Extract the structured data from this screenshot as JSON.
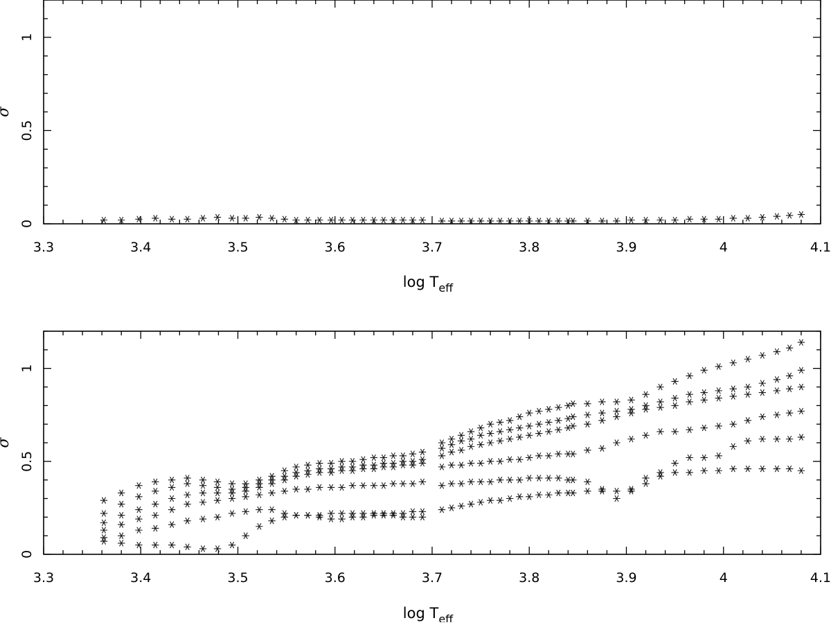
{
  "chart_data": [
    {
      "type": "scatter",
      "xlabel": "log T",
      "xlabel_subscript": "eff",
      "ylabel": "σ",
      "xlim": [
        3.3,
        4.1
      ],
      "ylim": [
        0,
        1.2
      ],
      "x_ticks": [
        3.3,
        3.4,
        3.5,
        3.6,
        3.7,
        3.8,
        3.9,
        4,
        4.1
      ],
      "x_tick_labels": [
        "3.3",
        "3.4",
        "3.5",
        "3.6",
        "3.7",
        "3.8",
        "3.9",
        "4",
        "4.1"
      ],
      "y_ticks": [
        0,
        0.5,
        1
      ],
      "y_tick_labels": [
        "0",
        "0.5",
        "1"
      ],
      "grid": false,
      "marker": "asterisk",
      "series": [
        {
          "x": [
            3.362,
            3.38,
            3.398,
            3.415,
            3.432,
            3.448,
            3.464,
            3.479,
            3.494,
            3.508,
            3.522,
            3.535,
            3.548,
            3.56,
            3.572,
            3.584,
            3.596,
            3.607,
            3.618,
            3.629,
            3.64,
            3.65,
            3.66,
            3.67,
            3.68,
            3.69,
            3.71,
            3.72,
            3.73,
            3.74,
            3.75,
            3.76,
            3.77,
            3.78,
            3.79,
            3.8,
            3.81,
            3.82,
            3.83,
            3.84,
            3.845,
            3.86,
            3.875,
            3.89,
            3.905,
            3.92,
            3.935,
            3.95,
            3.965,
            3.98,
            3.995,
            4.01,
            4.025,
            4.04,
            4.055,
            4.068,
            4.08
          ],
          "y": [
            0.02,
            0.02,
            0.025,
            0.03,
            0.025,
            0.025,
            0.03,
            0.035,
            0.03,
            0.03,
            0.035,
            0.03,
            0.025,
            0.02,
            0.02,
            0.02,
            0.02,
            0.02,
            0.02,
            0.02,
            0.02,
            0.02,
            0.02,
            0.02,
            0.02,
            0.02,
            0.015,
            0.015,
            0.015,
            0.015,
            0.015,
            0.015,
            0.015,
            0.015,
            0.015,
            0.015,
            0.015,
            0.015,
            0.015,
            0.015,
            0.015,
            0.015,
            0.015,
            0.015,
            0.02,
            0.02,
            0.02,
            0.02,
            0.025,
            0.025,
            0.025,
            0.03,
            0.03,
            0.035,
            0.04,
            0.045,
            0.05
          ]
        }
      ]
    },
    {
      "type": "scatter",
      "xlabel": "log T",
      "xlabel_subscript": "eff",
      "ylabel": "σ",
      "xlim": [
        3.3,
        4.1
      ],
      "ylim": [
        0,
        1.2
      ],
      "x_ticks": [
        3.3,
        3.4,
        3.5,
        3.6,
        3.7,
        3.8,
        3.9,
        4,
        4.1
      ],
      "x_tick_labels": [
        "3.3",
        "3.4",
        "3.5",
        "3.6",
        "3.7",
        "3.8",
        "3.9",
        "4",
        "4.1"
      ],
      "y_ticks": [
        0,
        0.5,
        1
      ],
      "y_tick_labels": [
        "0",
        "0.5",
        "1"
      ],
      "grid": false,
      "marker": "asterisk",
      "series": [
        {
          "x": [
            3.362,
            3.38,
            3.398,
            3.415,
            3.432,
            3.448,
            3.464,
            3.479,
            3.494,
            3.508,
            3.522,
            3.535,
            3.548,
            3.56,
            3.572,
            3.584,
            3.596,
            3.607,
            3.618,
            3.629,
            3.64,
            3.65,
            3.66,
            3.67,
            3.68,
            3.69,
            3.71,
            3.72,
            3.73,
            3.74,
            3.75,
            3.76,
            3.77,
            3.78,
            3.79,
            3.8,
            3.81,
            3.82,
            3.83,
            3.84,
            3.845,
            3.86,
            3.875,
            3.89,
            3.905,
            3.92,
            3.935,
            3.95,
            3.965,
            3.98,
            3.995,
            4.01,
            4.025,
            4.04,
            4.055,
            4.068,
            4.08
          ],
          "y": [
            0.29,
            0.33,
            0.37,
            0.39,
            0.4,
            0.41,
            0.4,
            0.39,
            0.38,
            0.38,
            0.4,
            0.42,
            0.45,
            0.47,
            0.48,
            0.49,
            0.49,
            0.5,
            0.5,
            0.51,
            0.52,
            0.52,
            0.53,
            0.53,
            0.54,
            0.55,
            0.6,
            0.62,
            0.64,
            0.66,
            0.68,
            0.7,
            0.71,
            0.72,
            0.74,
            0.76,
            0.77,
            0.78,
            0.79,
            0.8,
            0.81,
            0.81,
            0.82,
            0.82,
            0.83,
            0.86,
            0.9,
            0.93,
            0.96,
            0.99,
            1.01,
            1.03,
            1.05,
            1.07,
            1.09,
            1.11,
            1.14
          ]
        },
        {
          "x": [
            3.362,
            3.38,
            3.398,
            3.415,
            3.432,
            3.448,
            3.464,
            3.479,
            3.494,
            3.508,
            3.522,
            3.535,
            3.548,
            3.56,
            3.572,
            3.584,
            3.596,
            3.607,
            3.618,
            3.629,
            3.64,
            3.65,
            3.66,
            3.67,
            3.68,
            3.69,
            3.71,
            3.72,
            3.73,
            3.74,
            3.75,
            3.76,
            3.77,
            3.78,
            3.79,
            3.8,
            3.81,
            3.82,
            3.83,
            3.84,
            3.845,
            3.86,
            3.875,
            3.89,
            3.905,
            3.92,
            3.935,
            3.95,
            3.965,
            3.98,
            3.995,
            4.01,
            4.025,
            4.04,
            4.055,
            4.068,
            4.08
          ],
          "y": [
            0.22,
            0.27,
            0.31,
            0.34,
            0.36,
            0.38,
            0.37,
            0.36,
            0.35,
            0.36,
            0.38,
            0.4,
            0.42,
            0.44,
            0.45,
            0.46,
            0.46,
            0.47,
            0.47,
            0.48,
            0.48,
            0.49,
            0.49,
            0.5,
            0.5,
            0.51,
            0.57,
            0.59,
            0.61,
            0.62,
            0.64,
            0.65,
            0.66,
            0.67,
            0.68,
            0.69,
            0.7,
            0.71,
            0.72,
            0.73,
            0.74,
            0.75,
            0.76,
            0.77,
            0.78,
            0.8,
            0.82,
            0.84,
            0.86,
            0.87,
            0.88,
            0.89,
            0.9,
            0.92,
            0.94,
            0.96,
            0.99
          ]
        },
        {
          "x": [
            3.362,
            3.38,
            3.398,
            3.415,
            3.432,
            3.448,
            3.464,
            3.479,
            3.494,
            3.508,
            3.522,
            3.535,
            3.548,
            3.56,
            3.572,
            3.584,
            3.596,
            3.607,
            3.618,
            3.629,
            3.64,
            3.65,
            3.66,
            3.67,
            3.68,
            3.69,
            3.71,
            3.72,
            3.73,
            3.74,
            3.75,
            3.76,
            3.77,
            3.78,
            3.79,
            3.8,
            3.81,
            3.82,
            3.83,
            3.84,
            3.845,
            3.86,
            3.875,
            3.89,
            3.905,
            3.92,
            3.935,
            3.95,
            3.965,
            3.98,
            3.995,
            4.01,
            4.025,
            4.04,
            4.055,
            4.068,
            4.08
          ],
          "y": [
            0.17,
            0.21,
            0.24,
            0.27,
            0.3,
            0.32,
            0.33,
            0.33,
            0.33,
            0.34,
            0.36,
            0.38,
            0.4,
            0.42,
            0.43,
            0.44,
            0.44,
            0.45,
            0.45,
            0.46,
            0.46,
            0.47,
            0.47,
            0.48,
            0.48,
            0.49,
            0.53,
            0.55,
            0.56,
            0.58,
            0.59,
            0.6,
            0.61,
            0.62,
            0.63,
            0.64,
            0.65,
            0.66,
            0.67,
            0.68,
            0.69,
            0.7,
            0.72,
            0.74,
            0.76,
            0.78,
            0.79,
            0.8,
            0.82,
            0.83,
            0.84,
            0.85,
            0.86,
            0.87,
            0.88,
            0.89,
            0.9
          ]
        },
        {
          "x": [
            3.362,
            3.38,
            3.398,
            3.415,
            3.432,
            3.448,
            3.464,
            3.479,
            3.494,
            3.508,
            3.522,
            3.535,
            3.548,
            3.56,
            3.572,
            3.584,
            3.596,
            3.607,
            3.618,
            3.629,
            3.64,
            3.65,
            3.66,
            3.67,
            3.68,
            3.69,
            3.71,
            3.72,
            3.73,
            3.74,
            3.75,
            3.76,
            3.77,
            3.78,
            3.79,
            3.8,
            3.81,
            3.82,
            3.83,
            3.84,
            3.845,
            3.86,
            3.875,
            3.89,
            3.905,
            3.92,
            3.935,
            3.95,
            3.965,
            3.98,
            3.995,
            4.01,
            4.025,
            4.04,
            4.055,
            4.068,
            4.08
          ],
          "y": [
            0.13,
            0.16,
            0.19,
            0.21,
            0.24,
            0.27,
            0.28,
            0.29,
            0.3,
            0.31,
            0.32,
            0.33,
            0.34,
            0.35,
            0.35,
            0.36,
            0.36,
            0.36,
            0.37,
            0.37,
            0.37,
            0.37,
            0.38,
            0.38,
            0.38,
            0.39,
            0.47,
            0.48,
            0.48,
            0.49,
            0.49,
            0.5,
            0.5,
            0.51,
            0.51,
            0.52,
            0.53,
            0.53,
            0.54,
            0.54,
            0.54,
            0.56,
            0.57,
            0.6,
            0.62,
            0.64,
            0.66,
            0.66,
            0.67,
            0.68,
            0.69,
            0.7,
            0.72,
            0.74,
            0.75,
            0.76,
            0.77
          ]
        },
        {
          "x": [
            3.362,
            3.38,
            3.398,
            3.415,
            3.432,
            3.448,
            3.464,
            3.479,
            3.494,
            3.508,
            3.522,
            3.535,
            3.548,
            3.56,
            3.572,
            3.584,
            3.596,
            3.607,
            3.618,
            3.629,
            3.64,
            3.65,
            3.66,
            3.67,
            3.68,
            3.69,
            3.71,
            3.72,
            3.73,
            3.74,
            3.75,
            3.76,
            3.77,
            3.78,
            3.79,
            3.8,
            3.81,
            3.82,
            3.83,
            3.84,
            3.845,
            3.86,
            3.875,
            3.89,
            3.905,
            3.92,
            3.935,
            3.95,
            3.965,
            3.98,
            3.995,
            4.01,
            4.025,
            4.04,
            4.055,
            4.068,
            4.08
          ],
          "y": [
            0.09,
            0.1,
            0.13,
            0.14,
            0.16,
            0.18,
            0.19,
            0.2,
            0.22,
            0.23,
            0.24,
            0.24,
            0.22,
            0.21,
            0.21,
            0.21,
            0.22,
            0.22,
            0.22,
            0.22,
            0.22,
            0.22,
            0.22,
            0.22,
            0.23,
            0.23,
            0.37,
            0.38,
            0.38,
            0.39,
            0.39,
            0.39,
            0.4,
            0.4,
            0.4,
            0.41,
            0.41,
            0.41,
            0.41,
            0.4,
            0.4,
            0.39,
            0.35,
            0.3,
            0.34,
            0.41,
            0.44,
            0.49,
            0.52,
            0.52,
            0.53,
            0.58,
            0.61,
            0.62,
            0.62,
            0.62,
            0.63
          ]
        },
        {
          "x": [
            3.362,
            3.38,
            3.398,
            3.415,
            3.432,
            3.448,
            3.464,
            3.479,
            3.494,
            3.508,
            3.522,
            3.535,
            3.548,
            3.56,
            3.572,
            3.584,
            3.596,
            3.607,
            3.618,
            3.629,
            3.64,
            3.65,
            3.66,
            3.67,
            3.68,
            3.69,
            3.71,
            3.72,
            3.73,
            3.74,
            3.75,
            3.76,
            3.77,
            3.78,
            3.79,
            3.8,
            3.81,
            3.82,
            3.83,
            3.84,
            3.845,
            3.86,
            3.875,
            3.89,
            3.905,
            3.92,
            3.935,
            3.95,
            3.965,
            3.98,
            3.995,
            4.01,
            4.025,
            4.04,
            4.055,
            4.068,
            4.08
          ],
          "y": [
            0.07,
            0.06,
            0.05,
            0.05,
            0.05,
            0.04,
            0.03,
            0.03,
            0.05,
            0.1,
            0.15,
            0.18,
            0.2,
            0.21,
            0.21,
            0.2,
            0.19,
            0.19,
            0.2,
            0.2,
            0.21,
            0.21,
            0.21,
            0.2,
            0.2,
            0.2,
            0.24,
            0.25,
            0.26,
            0.27,
            0.28,
            0.29,
            0.29,
            0.3,
            0.31,
            0.31,
            0.32,
            0.32,
            0.33,
            0.33,
            0.33,
            0.34,
            0.34,
            0.34,
            0.35,
            0.38,
            0.42,
            0.44,
            0.44,
            0.45,
            0.45,
            0.46,
            0.46,
            0.46,
            0.46,
            0.46,
            0.45
          ]
        }
      ]
    }
  ]
}
